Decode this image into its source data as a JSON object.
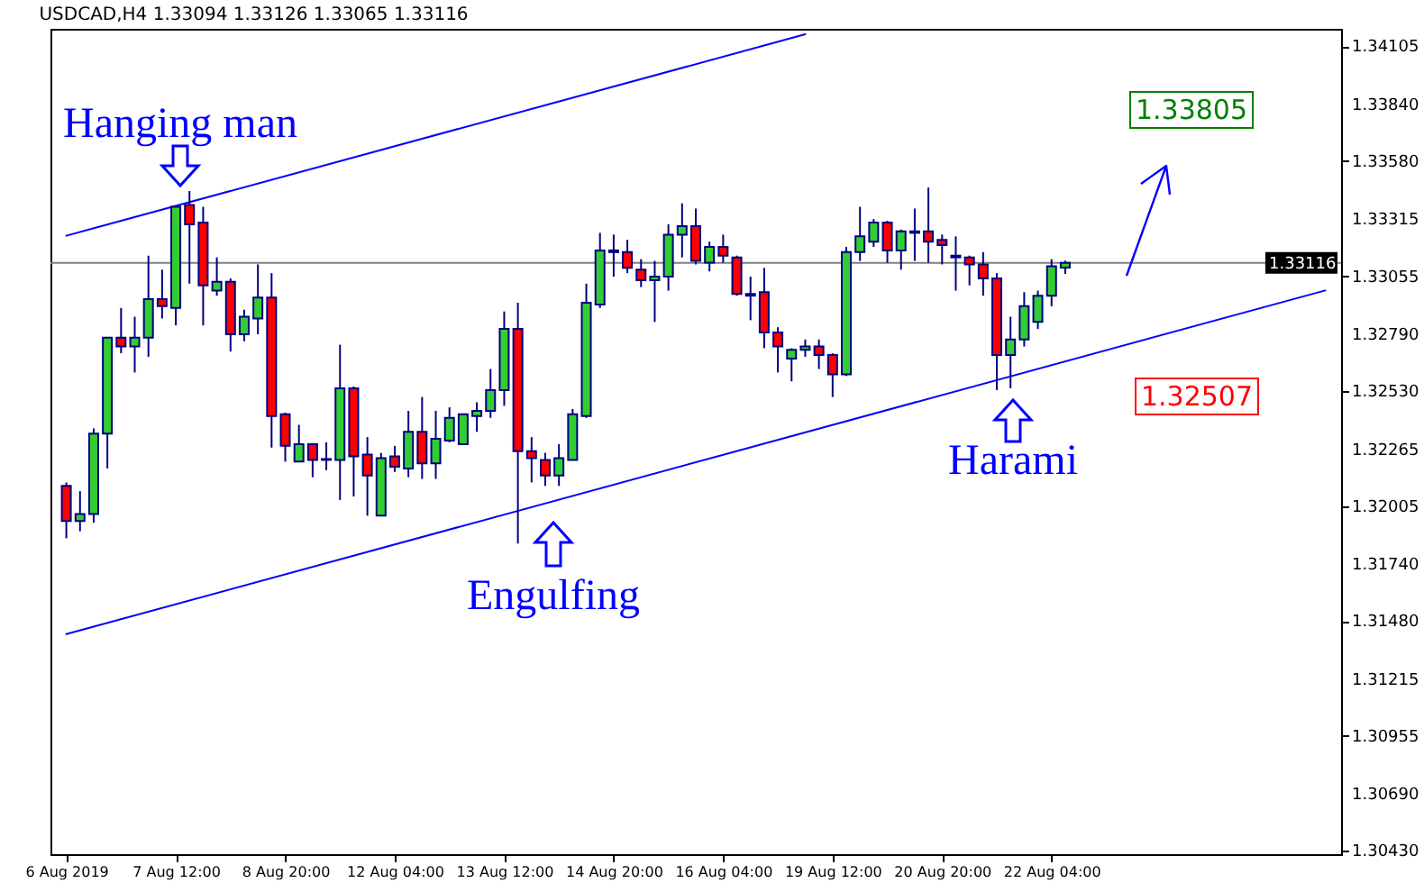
{
  "chart_data": {
    "type": "candlestick",
    "title": "USDCAD,H4  1.33094 1.33126 1.33065 1.33116",
    "categories": [
      "6 Aug 2019",
      null,
      null,
      null,
      null,
      null,
      null,
      null,
      "7 Aug 12:00",
      null,
      null,
      null,
      null,
      null,
      null,
      null,
      "8 Aug 20:00",
      null,
      null,
      null,
      null,
      null,
      null,
      null,
      "12 Aug 04:00",
      null,
      null,
      null,
      null,
      null,
      null,
      null,
      "13 Aug 12:00",
      null,
      null,
      null,
      null,
      null,
      null,
      null,
      "14 Aug 20:00",
      null,
      null,
      null,
      null,
      null,
      null,
      null,
      "16 Aug 04:00",
      null,
      null,
      null,
      null,
      null,
      null,
      null,
      "19 Aug 12:00",
      null,
      null,
      null,
      null,
      null,
      null,
      null,
      "20 Aug 20:00",
      null,
      null,
      null,
      null,
      null,
      null,
      null,
      "22 Aug 04:00",
      null,
      null,
      null,
      null,
      null,
      null,
      null,
      null,
      null,
      null,
      null,
      null,
      null,
      null,
      null,
      null,
      null,
      null,
      null,
      null
    ],
    "ohlc": [
      [
        1.32097,
        1.32113,
        1.31858,
        1.31937
      ],
      [
        1.31937,
        1.32073,
        1.3189,
        1.31969
      ],
      [
        1.31969,
        1.3236,
        1.31929,
        1.32336
      ],
      [
        1.32336,
        1.32774,
        1.32177,
        1.32774
      ],
      [
        1.32774,
        1.3291,
        1.32703,
        1.32734
      ],
      [
        1.32734,
        1.3287,
        1.32615,
        1.32774
      ],
      [
        1.32774,
        1.33149,
        1.32687,
        1.3295
      ],
      [
        1.3295,
        1.33085,
        1.32862,
        1.32918
      ],
      [
        1.3291,
        1.33372,
        1.3283,
        1.33372
      ],
      [
        1.3338,
        1.33444,
        1.33021,
        1.33292
      ],
      [
        1.333,
        1.33372,
        1.3283,
        1.33013
      ],
      [
        1.32989,
        1.33141,
        1.32966,
        1.33029
      ],
      [
        1.33029,
        1.33045,
        1.32711,
        1.3279
      ],
      [
        1.3279,
        1.32902,
        1.32758,
        1.3287
      ],
      [
        1.32862,
        1.33109,
        1.3279,
        1.32958
      ],
      [
        1.32958,
        1.33069,
        1.32272,
        1.32416
      ],
      [
        1.32424,
        1.32432,
        1.32208,
        1.3228
      ],
      [
        1.32208,
        1.32376,
        1.32208,
        1.32288
      ],
      [
        1.32288,
        1.32288,
        1.32137,
        1.32216
      ],
      [
        1.32216,
        1.32296,
        1.32169,
        1.3222
      ],
      [
        1.32216,
        1.32742,
        1.32033,
        1.32543
      ],
      [
        1.32543,
        1.32551,
        1.32049,
        1.32232
      ],
      [
        1.3224,
        1.3232,
        1.31961,
        1.32145
      ],
      [
        1.31961,
        1.32248,
        1.31961,
        1.32224
      ],
      [
        1.32232,
        1.3228,
        1.32161,
        1.32185
      ],
      [
        1.32177,
        1.3244,
        1.32137,
        1.32344
      ],
      [
        1.32344,
        1.32503,
        1.32129,
        1.322
      ],
      [
        1.322,
        1.3244,
        1.32129,
        1.32312
      ],
      [
        1.32304,
        1.32456,
        1.32296,
        1.32408
      ],
      [
        1.32288,
        1.32424,
        1.32288,
        1.32424
      ],
      [
        1.32416,
        1.32479,
        1.32344,
        1.3244
      ],
      [
        1.3244,
        1.32631,
        1.32408,
        1.32535
      ],
      [
        1.32535,
        1.32894,
        1.32463,
        1.32814
      ],
      [
        1.32814,
        1.32934,
        1.31834,
        1.32256
      ],
      [
        1.32256,
        1.3232,
        1.32113,
        1.32224
      ],
      [
        1.32216,
        1.32248,
        1.32097,
        1.32145
      ],
      [
        1.32145,
        1.32288,
        1.32097,
        1.32224
      ],
      [
        1.32216,
        1.32448,
        1.32216,
        1.32424
      ],
      [
        1.32416,
        1.33021,
        1.32408,
        1.32934
      ],
      [
        1.32926,
        1.33253,
        1.3291,
        1.33173
      ],
      [
        1.33173,
        1.33245,
        1.33053,
        1.33165
      ],
      [
        1.33165,
        1.33221,
        1.33069,
        1.33093
      ],
      [
        1.33085,
        1.33133,
        1.33005,
        1.33037
      ],
      [
        1.33037,
        1.33125,
        1.32846,
        1.33053
      ],
      [
        1.33053,
        1.33292,
        1.32989,
        1.33245
      ],
      [
        1.33245,
        1.33388,
        1.33141,
        1.33284
      ],
      [
        1.33284,
        1.33364,
        1.33109,
        1.33125
      ],
      [
        1.33117,
        1.33213,
        1.33077,
        1.33189
      ],
      [
        1.33189,
        1.33245,
        1.33117,
        1.33149
      ],
      [
        1.33141,
        1.33149,
        1.32966,
        1.32974
      ],
      [
        1.32974,
        1.33053,
        1.32854,
        1.32966
      ],
      [
        1.32982,
        1.33093,
        1.32726,
        1.32798
      ],
      [
        1.32798,
        1.32822,
        1.32615,
        1.32734
      ],
      [
        1.32679,
        1.32726,
        1.32575,
        1.32719
      ],
      [
        1.32719,
        1.32766,
        1.32687,
        1.32734
      ],
      [
        1.32734,
        1.32766,
        1.32631,
        1.32695
      ],
      [
        1.32695,
        1.32703,
        1.32503,
        1.32607
      ],
      [
        1.32607,
        1.33189,
        1.32599,
        1.33165
      ],
      [
        1.33165,
        1.33372,
        1.33125,
        1.33237
      ],
      [
        1.33213,
        1.33316,
        1.33189,
        1.333
      ],
      [
        1.333,
        1.33308,
        1.33117,
        1.33173
      ],
      [
        1.33173,
        1.33268,
        1.33085,
        1.3326
      ],
      [
        1.3326,
        1.33364,
        1.33125,
        1.33253
      ],
      [
        1.3326,
        1.3346,
        1.33117,
        1.33213
      ],
      [
        1.33221,
        1.33245,
        1.33109,
        1.33197
      ],
      [
        1.33149,
        1.33237,
        1.32989,
        1.33141
      ],
      [
        1.33141,
        1.33149,
        1.33013,
        1.33109
      ],
      [
        1.33109,
        1.33165,
        1.32966,
        1.33045
      ],
      [
        1.33045,
        1.33069,
        1.32535,
        1.32695
      ],
      [
        1.32695,
        1.3287,
        1.32543,
        1.32766
      ],
      [
        1.32766,
        1.32982,
        1.32734,
        1.32918
      ],
      [
        1.32846,
        1.32989,
        1.32814,
        1.32966
      ],
      [
        1.32966,
        1.33133,
        1.32918,
        1.33101
      ],
      [
        1.33094,
        1.33126,
        1.33065,
        1.33116
      ],
      null,
      null,
      null,
      null,
      null,
      null,
      null,
      null,
      null,
      null,
      null,
      null,
      null,
      null,
      null,
      null,
      null,
      null,
      null
    ],
    "colors": [
      "#ff0000",
      "#32cd32",
      "#32cd32",
      "#32cd32",
      "#ff0000",
      "#32cd32",
      "#32cd32",
      "#ff0000",
      "#32cd32",
      "#ff0000",
      "#ff0000",
      "#32cd32",
      "#ff0000",
      "#32cd32",
      "#32cd32",
      "#ff0000",
      "#ff0000",
      "#32cd32",
      "#ff0000",
      "#32cd32",
      "#32cd32",
      "#ff0000",
      "#ff0000",
      "#32cd32",
      "#ff0000",
      "#32cd32",
      "#ff0000",
      "#32cd32",
      "#32cd32",
      "#32cd32",
      "#32cd32",
      "#32cd32",
      "#32cd32",
      "#ff0000",
      "#ff0000",
      "#ff0000",
      "#32cd32",
      "#32cd32",
      "#32cd32",
      "#32cd32",
      "#ff0000",
      "#ff0000",
      "#ff0000",
      "#32cd32",
      "#32cd32",
      "#32cd32",
      "#ff0000",
      "#32cd32",
      "#ff0000",
      "#ff0000",
      "#ff0000",
      "#ff0000",
      "#ff0000",
      "#32cd32",
      "#32cd32",
      "#ff0000",
      "#ff0000",
      "#32cd32",
      "#32cd32",
      "#32cd32",
      "#ff0000",
      "#32cd32",
      "#ff0000",
      "#ff0000",
      "#ff0000",
      "#ff0000",
      "#ff0000",
      "#ff0000",
      "#ff0000",
      "#32cd32",
      "#32cd32",
      "#32cd32",
      "#32cd32",
      "#32cd32",
      null,
      null,
      null,
      null,
      null,
      null,
      null,
      null,
      null,
      null,
      null,
      null,
      null,
      null,
      null,
      null,
      null,
      null,
      null
    ],
    "series": [
      {
        "type": "line",
        "color": "#0000ff",
        "values": [
          1.3324,
          null,
          null,
          null,
          null,
          null,
          null,
          null,
          null,
          null,
          null,
          null,
          null,
          null,
          null,
          null,
          null,
          null,
          null,
          null,
          null,
          null,
          null,
          null,
          null,
          null,
          null,
          null,
          null,
          null,
          null,
          null,
          null,
          null,
          null,
          null,
          null,
          null,
          null,
          null,
          null,
          null,
          null,
          null,
          null,
          null,
          null,
          null,
          null,
          null,
          null,
          null,
          null,
          null,
          1.3416,
          null,
          null,
          null,
          null,
          null,
          null,
          null,
          null,
          null,
          null,
          null,
          null,
          null,
          null,
          null,
          null,
          null,
          null,
          null,
          null,
          null,
          null,
          null,
          null,
          null,
          null,
          null,
          null,
          null,
          null,
          null,
          null,
          null,
          null,
          null,
          null,
          null,
          null
        ]
      },
      {
        "type": "line",
        "color": "#0000ff",
        "values": [
          1.3142,
          null,
          null,
          null,
          null,
          null,
          null,
          null,
          null,
          null,
          null,
          null,
          null,
          null,
          null,
          null,
          null,
          null,
          null,
          null,
          null,
          null,
          null,
          null,
          null,
          null,
          null,
          null,
          null,
          null,
          null,
          null,
          null,
          null,
          null,
          null,
          null,
          null,
          null,
          null,
          null,
          null,
          null,
          null,
          null,
          null,
          null,
          null,
          null,
          null,
          null,
          null,
          null,
          null,
          null,
          null,
          null,
          null,
          null,
          null,
          null,
          null,
          null,
          null,
          null,
          null,
          null,
          null,
          null,
          null,
          null,
          null,
          null,
          null,
          null,
          null,
          null,
          null,
          null,
          null,
          null,
          null,
          null,
          null,
          null,
          null,
          null,
          null,
          null,
          null,
          null,
          null,
          1.3299
        ]
      }
    ],
    "ylim": [
      1.30415,
      1.34185
    ],
    "yticks": [
      1.34105,
      {
        "value": 1.3384,
        "label": "1.33840"
      },
      {
        "value": 1.3358,
        "label": "1.33580"
      },
      1.33315,
      1.33055,
      {
        "value": 1.3279,
        "label": "1.32790"
      },
      {
        "value": 1.3253,
        "label": "1.32530"
      },
      1.32265,
      1.32005,
      {
        "value": 1.3174,
        "label": "1.31740"
      },
      {
        "value": 1.3148,
        "label": "1.31480"
      },
      1.31215,
      1.30955,
      {
        "value": 1.3069,
        "label": "1.30690"
      },
      {
        "value": 1.3043,
        "label": "1.30430"
      }
    ],
    "ref_lines": [
      {
        "axis": "y",
        "value": 1.33116,
        "label": "1.33116",
        "color": "#808080"
      }
    ],
    "annotations": [
      "Hanging man",
      "Engulfing",
      "Harami",
      "1.33805",
      "1.32507"
    ]
  }
}
